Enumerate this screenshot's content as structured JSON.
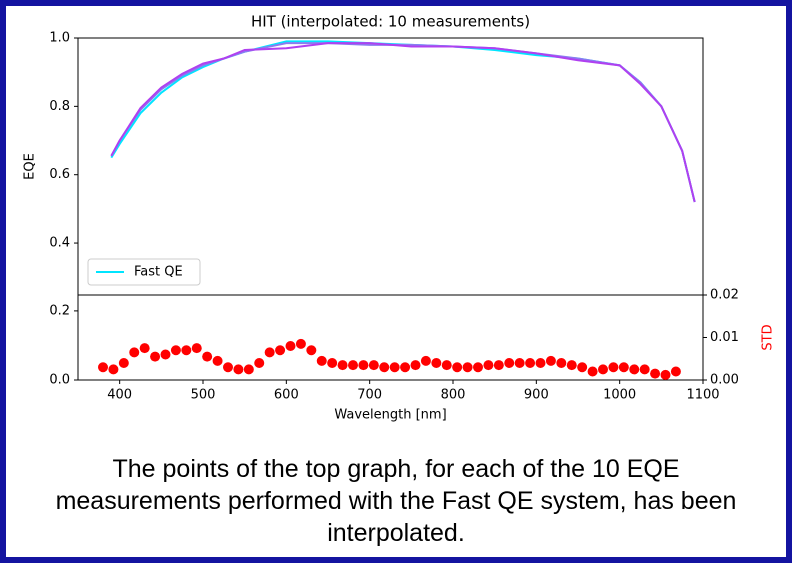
{
  "chart_data": [
    {
      "type": "line",
      "title": "HIT (interpolated: 10 measurements)",
      "ylabel": "EQE",
      "xlim": [
        350,
        1100
      ],
      "ylim": [
        0.248,
        1.0
      ],
      "yticks": [
        0.4,
        0.6,
        0.8,
        {
          "value": 1,
          "label": "1.0"
        }
      ],
      "legend": "lower left",
      "x": [
        390,
        400,
        425,
        450,
        475,
        500,
        525,
        550,
        600,
        650,
        700,
        750,
        800,
        850,
        900,
        950,
        1000,
        1025,
        1050,
        1075,
        1090
      ],
      "series": [
        {
          "name": "Fast QE",
          "color": "#00e5ff",
          "values": [
            0.65,
            0.69,
            0.78,
            0.84,
            0.885,
            0.915,
            0.94,
            0.96,
            0.99,
            0.99,
            0.985,
            0.98,
            0.975,
            0.965,
            0.95,
            0.94,
            0.92,
            0.87,
            0.8,
            0.67,
            0.52
          ]
        },
        {
          "color": "#8a7cf0",
          "values": [
            0.655,
            0.7,
            0.79,
            0.85,
            0.89,
            0.92,
            0.94,
            0.96,
            0.985,
            0.985,
            0.98,
            0.98,
            0.975,
            0.97,
            0.955,
            0.94,
            0.92,
            0.87,
            0.8,
            0.67,
            0.52
          ]
        },
        {
          "color": "#b040f0",
          "values": [
            0.655,
            0.7,
            0.795,
            0.855,
            0.895,
            0.925,
            0.94,
            0.965,
            0.97,
            0.985,
            0.985,
            0.975,
            0.975,
            0.97,
            0.955,
            0.935,
            0.92,
            0.865,
            0.8,
            0.67,
            0.52
          ]
        }
      ]
    },
    {
      "type": "scatter",
      "xlabel": "Wavelength [nm]",
      "y2label": "STD",
      "xlim": [
        350,
        1100
      ],
      "ylim": [
        0,
        0.246
      ],
      "y2lim": [
        0,
        0.02
      ],
      "xticks": [
        400,
        500,
        600,
        700,
        800,
        900,
        1000,
        1100
      ],
      "yticks": [
        {
          "value": 0,
          "label": "0.0"
        },
        0.2
      ],
      "y2ticks": [
        {
          "value": 0,
          "label": "0.00"
        },
        0.01,
        0.02
      ],
      "x": [
        380,
        392.5,
        405,
        417.5,
        430,
        442.5,
        455,
        467.5,
        480,
        492.5,
        505,
        517.5,
        530,
        542.5,
        555,
        567.5,
        580,
        592.5,
        605,
        617.5,
        630,
        642.5,
        655,
        667.5,
        680,
        692.5,
        705,
        717.5,
        730,
        742.5,
        755,
        767.5,
        780,
        792.5,
        805,
        817.5,
        830,
        842.5,
        855,
        867.5,
        880,
        892.5,
        905,
        917.5,
        930,
        942.5,
        955,
        967.5,
        980,
        992.5,
        1005,
        1017.5,
        1030,
        1042.5,
        1055,
        1067.5
      ],
      "series": [
        {
          "color": "#ff0000",
          "axis": "y2",
          "values": [
            0.003,
            0.0025,
            0.004,
            0.0065,
            0.0075,
            0.0055,
            0.006,
            0.007,
            0.007,
            0.0075,
            0.0055,
            0.0045,
            0.003,
            0.0025,
            0.0025,
            0.004,
            0.0065,
            0.007,
            0.008,
            0.0085,
            0.007,
            0.0045,
            0.004,
            0.0035,
            0.0035,
            0.0035,
            0.0035,
            0.003,
            0.003,
            0.003,
            0.0035,
            0.0045,
            0.004,
            0.0035,
            0.003,
            0.003,
            0.003,
            0.0035,
            0.0035,
            0.004,
            0.004,
            0.004,
            0.004,
            0.0045,
            0.004,
            0.0035,
            0.003,
            0.002,
            0.0025,
            0.003,
            0.003,
            0.0025,
            0.0025,
            0.0015,
            0.0012,
            0.002
          ]
        }
      ]
    }
  ],
  "caption": "The points of the top graph, for each of the 10 EQE measurements performed with the Fast QE system, has been interpolated."
}
